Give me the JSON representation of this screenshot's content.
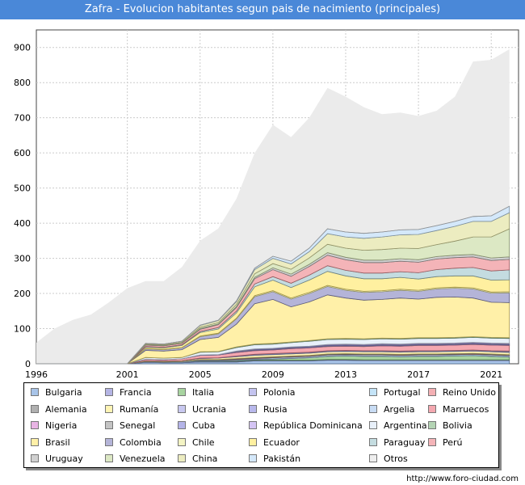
{
  "title": "Zafra - Evolucion habitantes segun pais de nacimiento (principales)",
  "source": "http://www.foro-ciudad.com",
  "chart_data": {
    "type": "area",
    "x_ticks": [
      "1996",
      "2001",
      "2005",
      "2009",
      "2013",
      "2017",
      "2021"
    ],
    "y_ticks": [
      "0",
      "100",
      "200",
      "300",
      "400",
      "500",
      "600",
      "700",
      "800",
      "900"
    ],
    "ylim": [
      0,
      950
    ],
    "xlim": [
      1996,
      2022.5
    ],
    "grid": true,
    "legend_position": "bottom",
    "years": [
      1996,
      1997,
      1998,
      1999,
      2000,
      2001,
      2002,
      2003,
      2004,
      2005,
      2006,
      2007,
      2008,
      2009,
      2010,
      2011,
      2012,
      2013,
      2014,
      2015,
      2016,
      2017,
      2018,
      2019,
      2020,
      2021,
      2022
    ],
    "total": [
      60,
      100,
      125,
      140,
      175,
      215,
      235,
      235,
      275,
      350,
      385,
      470,
      600,
      680,
      645,
      700,
      785,
      760,
      730,
      710,
      715,
      705,
      720,
      760,
      860,
      865,
      895
    ],
    "series": [
      {
        "name": "Bulgaria",
        "color": "#a8c4e8",
        "values": [
          0,
          0,
          0,
          0,
          0,
          0,
          4,
          3,
          3,
          5,
          5,
          5,
          8,
          8,
          8,
          8,
          10,
          10,
          9,
          9,
          9,
          9,
          9,
          9,
          9,
          9,
          9
        ]
      },
      {
        "name": "Francia",
        "color": "#b4b4e4",
        "values": [
          0,
          0,
          0,
          0,
          0,
          0,
          1,
          1,
          1,
          2,
          2,
          2,
          2,
          2,
          2,
          2,
          2,
          2,
          2,
          2,
          2,
          2,
          2,
          2,
          2,
          2,
          2
        ]
      },
      {
        "name": "Italia",
        "color": "#a8d4a0",
        "values": [
          0,
          0,
          0,
          0,
          0,
          0,
          0,
          0,
          0,
          1,
          1,
          2,
          2,
          3,
          5,
          7,
          9,
          10,
          10,
          10,
          9,
          10,
          10,
          11,
          12,
          10,
          8
        ]
      },
      {
        "name": "Polonia",
        "color": "#c4c4f0",
        "values": [
          0,
          0,
          0,
          0,
          0,
          0,
          0,
          0,
          0,
          0,
          0,
          1,
          1,
          1,
          1,
          1,
          1,
          1,
          1,
          1,
          1,
          1,
          1,
          1,
          1,
          1,
          1
        ]
      },
      {
        "name": "Portugal",
        "color": "#c4e4f8",
        "values": [
          0,
          0,
          0,
          0,
          0,
          0,
          1,
          1,
          2,
          2,
          2,
          2,
          2,
          3,
          3,
          3,
          3,
          3,
          3,
          3,
          3,
          3,
          3,
          3,
          3,
          3,
          3
        ]
      },
      {
        "name": "Reino Unido",
        "color": "#f4b0b4",
        "values": [
          0,
          0,
          0,
          0,
          0,
          0,
          0,
          0,
          0,
          0,
          0,
          1,
          1,
          1,
          1,
          1,
          1,
          1,
          1,
          1,
          1,
          1,
          1,
          1,
          1,
          1,
          1
        ]
      },
      {
        "name": "Alemania",
        "color": "#b0b0b0",
        "values": [
          0,
          0,
          0,
          0,
          0,
          0,
          1,
          1,
          1,
          2,
          2,
          2,
          2,
          2,
          2,
          2,
          2,
          2,
          2,
          2,
          2,
          2,
          2,
          2,
          2,
          2,
          2
        ]
      },
      {
        "name": "Rumanía",
        "color": "#fff4b4",
        "values": [
          0,
          0,
          0,
          0,
          0,
          0,
          2,
          2,
          2,
          3,
          4,
          5,
          6,
          6,
          6,
          6,
          6,
          6,
          6,
          6,
          6,
          6,
          6,
          6,
          6,
          6,
          6
        ]
      },
      {
        "name": "Ucrania",
        "color": "#c8c8f0",
        "values": [
          0,
          0,
          0,
          0,
          0,
          0,
          0,
          0,
          0,
          0,
          0,
          1,
          1,
          1,
          1,
          1,
          1,
          1,
          1,
          1,
          1,
          1,
          1,
          1,
          1,
          1,
          2
        ]
      },
      {
        "name": "Rusia",
        "color": "#b8b8ec",
        "values": [
          0,
          0,
          0,
          0,
          0,
          0,
          0,
          0,
          0,
          1,
          1,
          1,
          1,
          1,
          1,
          1,
          1,
          1,
          1,
          1,
          1,
          1,
          1,
          1,
          1,
          1,
          1
        ]
      },
      {
        "name": "Argelia",
        "color": "#c8dcf4",
        "values": [
          0,
          0,
          0,
          0,
          0,
          0,
          0,
          0,
          0,
          0,
          0,
          0,
          1,
          1,
          1,
          1,
          1,
          1,
          1,
          1,
          1,
          1,
          1,
          1,
          1,
          1,
          1
        ]
      },
      {
        "name": "Marruecos",
        "color": "#f4a8b0",
        "values": [
          0,
          0,
          0,
          0,
          0,
          0,
          4,
          4,
          5,
          8,
          8,
          10,
          10,
          10,
          12,
          12,
          12,
          12,
          12,
          14,
          14,
          15,
          15,
          15,
          16,
          16,
          16
        ]
      },
      {
        "name": "Nigeria",
        "color": "#e8b4e4",
        "values": [
          0,
          0,
          0,
          0,
          0,
          0,
          0,
          0,
          0,
          0,
          0,
          1,
          1,
          1,
          1,
          1,
          1,
          1,
          1,
          1,
          1,
          1,
          1,
          1,
          1,
          1,
          1
        ]
      },
      {
        "name": "Senegal",
        "color": "#c4c4c4",
        "values": [
          0,
          0,
          0,
          0,
          0,
          0,
          0,
          0,
          0,
          0,
          0,
          1,
          1,
          1,
          1,
          1,
          1,
          1,
          1,
          1,
          1,
          1,
          1,
          1,
          1,
          1,
          1
        ]
      },
      {
        "name": "Cuba",
        "color": "#b4b4e8",
        "values": [
          0,
          0,
          0,
          0,
          0,
          0,
          0,
          0,
          0,
          1,
          1,
          1,
          2,
          2,
          2,
          2,
          2,
          2,
          2,
          2,
          2,
          2,
          2,
          2,
          2,
          2,
          2
        ]
      },
      {
        "name": "República Dominicana",
        "color": "#d4c4f4",
        "values": [
          0,
          0,
          0,
          0,
          0,
          0,
          0,
          0,
          0,
          0,
          0,
          1,
          1,
          1,
          1,
          1,
          2,
          2,
          2,
          2,
          2,
          2,
          2,
          2,
          2,
          2,
          2
        ]
      },
      {
        "name": "Argentina",
        "color": "#e8f0fa",
        "values": [
          0,
          0,
          0,
          0,
          0,
          0,
          5,
          4,
          4,
          8,
          8,
          10,
          12,
          12,
          12,
          14,
          14,
          14,
          14,
          14,
          14,
          14,
          14,
          14,
          14,
          14,
          14
        ]
      },
      {
        "name": "Bolivia",
        "color": "#b4d4b4",
        "values": [
          0,
          0,
          0,
          0,
          0,
          0,
          0,
          0,
          0,
          1,
          1,
          2,
          2,
          2,
          2,
          2,
          2,
          2,
          2,
          2,
          2,
          2,
          2,
          2,
          2,
          2,
          2
        ]
      },
      {
        "name": "Brasil",
        "color": "#fff0a8",
        "values": [
          0,
          0,
          0,
          0,
          0,
          0,
          20,
          20,
          22,
          35,
          40,
          65,
          115,
          125,
          100,
          110,
          125,
          115,
          110,
          110,
          115,
          110,
          115,
          115,
          110,
          100,
          100
        ]
      },
      {
        "name": "Colombia",
        "color": "#b4b4d8",
        "values": [
          0,
          0,
          0,
          0,
          0,
          0,
          4,
          4,
          5,
          8,
          10,
          15,
          20,
          22,
          22,
          24,
          24,
          22,
          22,
          22,
          22,
          22,
          24,
          25,
          26,
          26,
          28
        ]
      },
      {
        "name": "Chile",
        "color": "#f4f4c4",
        "values": [
          0,
          0,
          0,
          0,
          0,
          0,
          1,
          1,
          1,
          2,
          2,
          2,
          3,
          3,
          3,
          3,
          3,
          3,
          3,
          3,
          3,
          3,
          3,
          3,
          3,
          3,
          3
        ]
      },
      {
        "name": "Ecuador",
        "color": "#fff0a0",
        "values": [
          0,
          0,
          0,
          0,
          0,
          0,
          4,
          4,
          6,
          10,
          12,
          15,
          25,
          30,
          30,
          35,
          40,
          38,
          36,
          34,
          34,
          32,
          32,
          32,
          34,
          34,
          34
        ]
      },
      {
        "name": "Paraguay",
        "color": "#c4dce0",
        "values": [
          0,
          0,
          0,
          0,
          0,
          0,
          2,
          2,
          2,
          3,
          4,
          5,
          8,
          10,
          12,
          14,
          16,
          16,
          16,
          16,
          16,
          18,
          20,
          22,
          24,
          26,
          28
        ]
      },
      {
        "name": "Perú",
        "color": "#f4b4b8",
        "values": [
          0,
          0,
          0,
          0,
          0,
          0,
          4,
          4,
          4,
          6,
          8,
          10,
          15,
          20,
          20,
          25,
          30,
          30,
          30,
          30,
          30,
          30,
          30,
          30,
          30,
          30,
          30
        ]
      },
      {
        "name": "Uruguay",
        "color": "#d0d0d0",
        "values": [
          0,
          0,
          0,
          0,
          0,
          0,
          1,
          1,
          1,
          2,
          2,
          3,
          4,
          5,
          6,
          6,
          7,
          7,
          7,
          7,
          7,
          7,
          7,
          7,
          7,
          7,
          7
        ]
      },
      {
        "name": "Venezuela",
        "color": "#dce8c4",
        "values": [
          0,
          0,
          0,
          0,
          0,
          0,
          2,
          2,
          2,
          4,
          4,
          6,
          10,
          12,
          14,
          18,
          24,
          26,
          28,
          30,
          30,
          32,
          34,
          40,
          50,
          60,
          80
        ]
      },
      {
        "name": "China",
        "color": "#ececc0",
        "values": [
          0,
          0,
          0,
          0,
          0,
          0,
          2,
          2,
          3,
          5,
          6,
          8,
          12,
          15,
          15,
          18,
          30,
          32,
          34,
          36,
          38,
          40,
          40,
          42,
          44,
          44,
          46
        ]
      },
      {
        "name": "Pakistán",
        "color": "#d4e8fa",
        "values": [
          0,
          0,
          0,
          0,
          0,
          0,
          0,
          0,
          0,
          1,
          1,
          2,
          4,
          6,
          8,
          10,
          14,
          14,
          14,
          14,
          14,
          14,
          14,
          14,
          14,
          16,
          18
        ]
      },
      {
        "name": "Otros",
        "color": "#eeeeee",
        "values": [
          0,
          0,
          0,
          0,
          0,
          0,
          0,
          0,
          0,
          0,
          0,
          0,
          0,
          0,
          0,
          0,
          0,
          0,
          0,
          0,
          0,
          0,
          0,
          0,
          0,
          0,
          0
        ]
      }
    ],
    "legend_columns": [
      [
        "Bulgaria",
        "Alemania",
        "Nigeria",
        "Brasil",
        "Uruguay"
      ],
      [
        "Francia",
        "Rumanía",
        "Senegal",
        "Colombia",
        "Venezuela"
      ],
      [
        "Italia",
        "Ucrania",
        "Cuba",
        "Chile",
        "China"
      ],
      [
        "Polonia",
        "Rusia",
        "República Dominicana",
        "Ecuador",
        "Pakistán"
      ],
      [
        "Portugal",
        "Argelia",
        "Argentina",
        "Paraguay",
        "Otros"
      ],
      [
        "Reino Unido",
        "Marruecos",
        "Bolivia",
        "Perú",
        ""
      ]
    ]
  }
}
